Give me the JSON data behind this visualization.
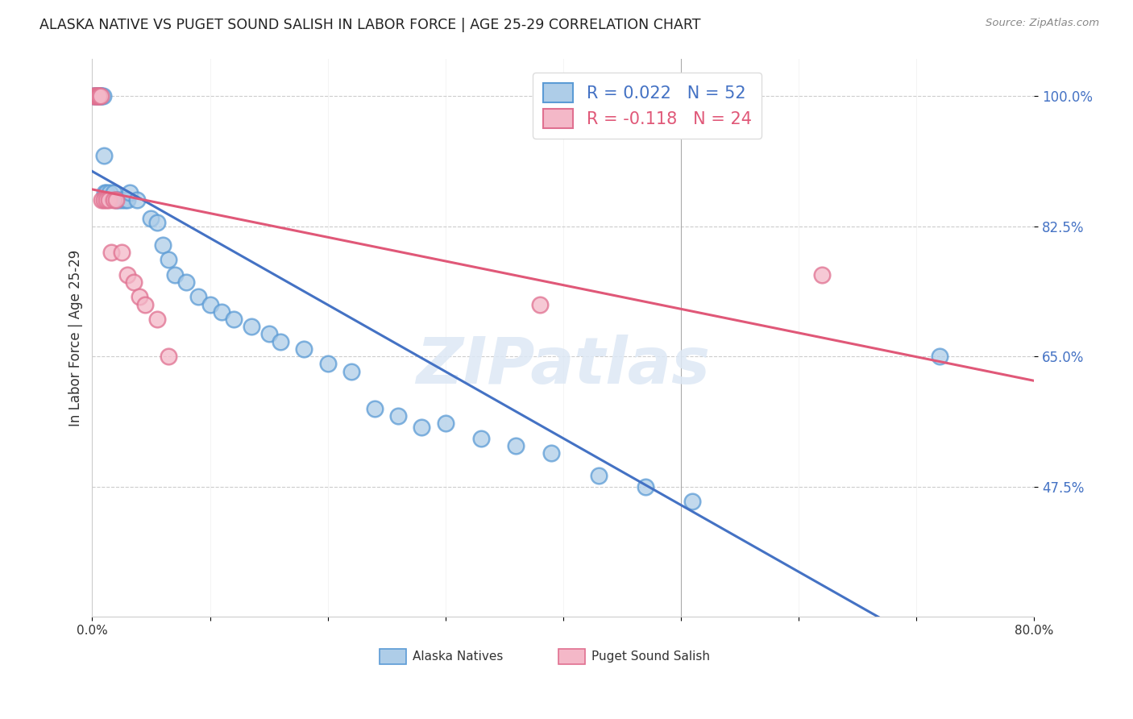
{
  "title": "ALASKA NATIVE VS PUGET SOUND SALISH IN LABOR FORCE | AGE 25-29 CORRELATION CHART",
  "source": "Source: ZipAtlas.com",
  "ylabel": "In Labor Force | Age 25-29",
  "xlim": [
    0.0,
    0.8
  ],
  "ylim": [
    0.3,
    1.05
  ],
  "yticks": [
    0.475,
    0.65,
    0.825,
    1.0
  ],
  "ytick_labels": [
    "47.5%",
    "65.0%",
    "82.5%",
    "100.0%"
  ],
  "xticks": [
    0.0,
    0.1,
    0.2,
    0.3,
    0.4,
    0.5,
    0.6,
    0.7,
    0.8
  ],
  "xtick_labels": [
    "0.0%",
    "",
    "",
    "",
    "",
    "",
    "",
    "",
    "80.0%"
  ],
  "blue_r": 0.022,
  "blue_n": 52,
  "pink_r": -0.118,
  "pink_n": 24,
  "blue_fill": "#aecde8",
  "pink_fill": "#f4b8c8",
  "blue_edge": "#5b9bd5",
  "pink_edge": "#e07090",
  "blue_line": "#4472c4",
  "pink_line": "#e05878",
  "legend_blue_label": "Alaska Natives",
  "legend_pink_label": "Puget Sound Salish",
  "watermark": "ZIPatlas",
  "blue_points_x": [
    0.001,
    0.002,
    0.003,
    0.004,
    0.004,
    0.005,
    0.005,
    0.006,
    0.006,
    0.007,
    0.007,
    0.008,
    0.009,
    0.01,
    0.011,
    0.012,
    0.015,
    0.018,
    0.02,
    0.022,
    0.025,
    0.028,
    0.03,
    0.032,
    0.038,
    0.05,
    0.055,
    0.06,
    0.065,
    0.07,
    0.08,
    0.09,
    0.1,
    0.11,
    0.12,
    0.135,
    0.15,
    0.16,
    0.18,
    0.2,
    0.22,
    0.24,
    0.26,
    0.28,
    0.3,
    0.33,
    0.36,
    0.39,
    0.43,
    0.47,
    0.51,
    0.72
  ],
  "blue_points_y": [
    1.0,
    1.0,
    1.0,
    1.0,
    1.0,
    1.0,
    1.0,
    1.0,
    1.0,
    1.0,
    1.0,
    1.0,
    1.0,
    0.92,
    0.87,
    0.87,
    0.87,
    0.87,
    0.86,
    0.86,
    0.86,
    0.86,
    0.86,
    0.87,
    0.86,
    0.835,
    0.83,
    0.8,
    0.78,
    0.76,
    0.75,
    0.73,
    0.72,
    0.71,
    0.7,
    0.69,
    0.68,
    0.67,
    0.66,
    0.64,
    0.63,
    0.58,
    0.57,
    0.555,
    0.56,
    0.54,
    0.53,
    0.52,
    0.49,
    0.475,
    0.455,
    0.65
  ],
  "pink_points_x": [
    0.001,
    0.002,
    0.003,
    0.004,
    0.005,
    0.005,
    0.006,
    0.007,
    0.008,
    0.01,
    0.012,
    0.014,
    0.016,
    0.018,
    0.02,
    0.025,
    0.03,
    0.035,
    0.04,
    0.045,
    0.055,
    0.065,
    0.38,
    0.62
  ],
  "pink_points_y": [
    1.0,
    1.0,
    1.0,
    1.0,
    1.0,
    1.0,
    1.0,
    1.0,
    0.86,
    0.86,
    0.86,
    0.86,
    0.79,
    0.86,
    0.86,
    0.79,
    0.76,
    0.75,
    0.73,
    0.72,
    0.7,
    0.65,
    0.72,
    0.76
  ]
}
